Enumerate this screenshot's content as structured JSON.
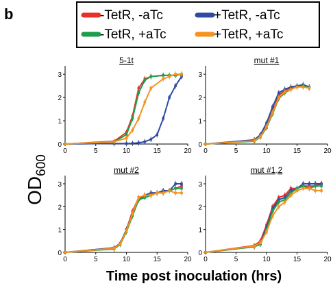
{
  "panel_letter": "b",
  "colors": {
    "minus_tetr_minus_atc": "#e8302a",
    "plus_tetr_minus_atc": "#2f4aa3",
    "minus_tetr_plus_atc": "#1e9e4a",
    "plus_tetr_plus_atc": "#f6921e"
  },
  "legend": [
    {
      "label": "-TetR, -aTc",
      "color": "#e8302a"
    },
    {
      "label": "+TetR, -aTc",
      "color": "#2f4aa3"
    },
    {
      "label": "-TetR, +aTc",
      "color": "#1e9e4a"
    },
    {
      "label": "+TetR, +aTc",
      "color": "#f6921e"
    }
  ],
  "ylabel_main": "OD",
  "ylabel_sub": "600",
  "xlabel": "Time post inoculation (hrs)",
  "chart_data": [
    {
      "type": "line",
      "title": "5-1t",
      "xlim": [
        0,
        20
      ],
      "ylim": [
        0,
        3.3
      ],
      "xticks": [
        "0",
        "5",
        "10",
        "15",
        "20"
      ],
      "yticks": [
        "0",
        "1",
        "2",
        "3"
      ],
      "series": [
        {
          "name": "-TetR, -aTc",
          "color": "#e8302a",
          "x": [
            0,
            8,
            10,
            11,
            12,
            13,
            14,
            16,
            17,
            18,
            19
          ],
          "y": [
            0,
            0.12,
            0.5,
            1.2,
            2.4,
            2.8,
            2.9,
            2.95,
            2.95,
            2.95,
            3.0
          ]
        },
        {
          "name": "+TetR, -aTc",
          "color": "#2f4aa3",
          "x": [
            0,
            8,
            10,
            11,
            12,
            13,
            14,
            15,
            16,
            17,
            18,
            19
          ],
          "y": [
            0,
            0.02,
            0.02,
            0.03,
            0.05,
            0.1,
            0.2,
            0.4,
            1.1,
            2.0,
            2.5,
            2.9
          ]
        },
        {
          "name": "-TetR, +aTc",
          "color": "#1e9e4a",
          "x": [
            0,
            8,
            10,
            11,
            12,
            13,
            14,
            16,
            17,
            18,
            19
          ],
          "y": [
            0,
            0.1,
            0.4,
            1.1,
            2.2,
            2.75,
            2.9,
            2.95,
            2.95,
            2.95,
            3.0
          ]
        },
        {
          "name": "+TetR, +aTc",
          "color": "#f6921e",
          "x": [
            0,
            8,
            10,
            11,
            12,
            13,
            14,
            16,
            17,
            18,
            19
          ],
          "y": [
            0,
            0.1,
            0.25,
            0.6,
            1.1,
            1.8,
            2.4,
            2.8,
            2.9,
            3.0,
            3.0
          ]
        }
      ]
    },
    {
      "type": "line",
      "title": "mut #1",
      "xlim": [
        0,
        20
      ],
      "ylim": [
        0,
        3.3
      ],
      "xticks": [
        "0",
        "5",
        "10",
        "15",
        "20"
      ],
      "yticks": [
        "0",
        "1",
        "2",
        "3"
      ],
      "series": [
        {
          "name": "-TetR, -aTc",
          "color": "#e8302a",
          "x": [
            0,
            8,
            9,
            10,
            11,
            12,
            13,
            14,
            15,
            16,
            17
          ],
          "y": [
            0,
            0.15,
            0.35,
            0.8,
            1.4,
            2.1,
            2.3,
            2.4,
            2.45,
            2.5,
            2.45
          ]
        },
        {
          "name": "+TetR, -aTc",
          "color": "#2f4aa3",
          "x": [
            0,
            8,
            9,
            10,
            11,
            12,
            13,
            14,
            15,
            16,
            17
          ],
          "y": [
            0,
            0.18,
            0.4,
            0.9,
            1.6,
            2.2,
            2.35,
            2.45,
            2.5,
            2.55,
            2.45
          ]
        },
        {
          "name": "-TetR, +aTc",
          "color": "#1e9e4a",
          "x": [
            0,
            8,
            9,
            10,
            11,
            12,
            13,
            14,
            15,
            16,
            17
          ],
          "y": [
            0,
            0.12,
            0.3,
            0.7,
            1.3,
            1.95,
            2.2,
            2.35,
            2.45,
            2.5,
            2.4
          ]
        },
        {
          "name": "+TetR, +aTc",
          "color": "#f6921e",
          "x": [
            0,
            8,
            9,
            10,
            11,
            12,
            13,
            14,
            15,
            16,
            17
          ],
          "y": [
            0,
            0.14,
            0.32,
            0.75,
            1.35,
            2.0,
            2.25,
            2.35,
            2.45,
            2.45,
            2.4
          ]
        }
      ]
    },
    {
      "type": "line",
      "title": "mut #2",
      "xlim": [
        0,
        20
      ],
      "ylim": [
        0,
        3.3
      ],
      "xticks": [
        "0",
        "5",
        "10",
        "15",
        "20"
      ],
      "yticks": [
        "0",
        "1",
        "2",
        "3"
      ],
      "series": [
        {
          "name": "-TetR, -aTc",
          "color": "#e8302a",
          "x": [
            0,
            8,
            9,
            10,
            11,
            12,
            13,
            14,
            15,
            16,
            17,
            18,
            19
          ],
          "y": [
            0,
            0.2,
            0.4,
            1.0,
            1.8,
            2.4,
            2.5,
            2.6,
            2.6,
            2.65,
            2.7,
            2.8,
            2.9
          ]
        },
        {
          "name": "+TetR, -aTc",
          "color": "#2f4aa3",
          "x": [
            0,
            8,
            9,
            10,
            11,
            12,
            13,
            14,
            15,
            16,
            17,
            18,
            19
          ],
          "y": [
            0,
            0.2,
            0.4,
            1.0,
            1.7,
            2.3,
            2.5,
            2.6,
            2.6,
            2.7,
            2.7,
            3.0,
            3.0
          ]
        },
        {
          "name": "-TetR, +aTc",
          "color": "#1e9e4a",
          "x": [
            0,
            8,
            9,
            10,
            11,
            12,
            13,
            14,
            15,
            16,
            17,
            18,
            19
          ],
          "y": [
            0,
            0.15,
            0.35,
            0.9,
            1.6,
            2.3,
            2.4,
            2.5,
            2.6,
            2.6,
            2.7,
            2.8,
            2.8
          ]
        },
        {
          "name": "+TetR, +aTc",
          "color": "#f6921e",
          "x": [
            0,
            8,
            9,
            10,
            11,
            12,
            13,
            14,
            15,
            16,
            17,
            18,
            19
          ],
          "y": [
            0,
            0.18,
            0.38,
            0.95,
            1.7,
            2.4,
            2.5,
            2.5,
            2.6,
            2.6,
            2.7,
            2.6,
            2.6
          ]
        }
      ]
    },
    {
      "type": "line",
      "title": "mut #1,2",
      "xlim": [
        0,
        20
      ],
      "ylim": [
        0,
        3.3
      ],
      "xticks": [
        "0",
        "5",
        "10",
        "15",
        "20"
      ],
      "yticks": [
        "0",
        "1",
        "2",
        "3"
      ],
      "series": [
        {
          "name": "-TetR, -aTc",
          "color": "#e8302a",
          "x": [
            0,
            8,
            9,
            10,
            11,
            12,
            13,
            14,
            15,
            16,
            17,
            18,
            19
          ],
          "y": [
            0,
            0.3,
            0.5,
            1.2,
            2.0,
            2.4,
            2.5,
            2.8,
            2.8,
            2.9,
            2.9,
            2.9,
            3.0
          ]
        },
        {
          "name": "+TetR, -aTc",
          "color": "#2f4aa3",
          "x": [
            0,
            8,
            9,
            10,
            11,
            12,
            13,
            14,
            15,
            16,
            17,
            18,
            19
          ],
          "y": [
            0,
            0.25,
            0.4,
            1.1,
            1.9,
            2.3,
            2.4,
            2.7,
            2.8,
            3.0,
            3.0,
            3.0,
            3.0
          ]
        },
        {
          "name": "-TetR, +aTc",
          "color": "#1e9e4a",
          "x": [
            0,
            8,
            9,
            10,
            11,
            12,
            13,
            14,
            15,
            16,
            17,
            18,
            19
          ],
          "y": [
            0,
            0.25,
            0.35,
            1.0,
            1.8,
            2.2,
            2.3,
            2.6,
            2.8,
            2.9,
            2.8,
            2.9,
            2.9
          ]
        },
        {
          "name": "+TetR, +aTc",
          "color": "#f6921e",
          "x": [
            0,
            8,
            9,
            10,
            11,
            12,
            13,
            14,
            15,
            16,
            17,
            18,
            19
          ],
          "y": [
            0,
            0.28,
            0.42,
            0.9,
            1.6,
            2.0,
            2.2,
            2.5,
            2.7,
            2.8,
            2.8,
            2.7,
            2.7
          ]
        }
      ]
    }
  ]
}
